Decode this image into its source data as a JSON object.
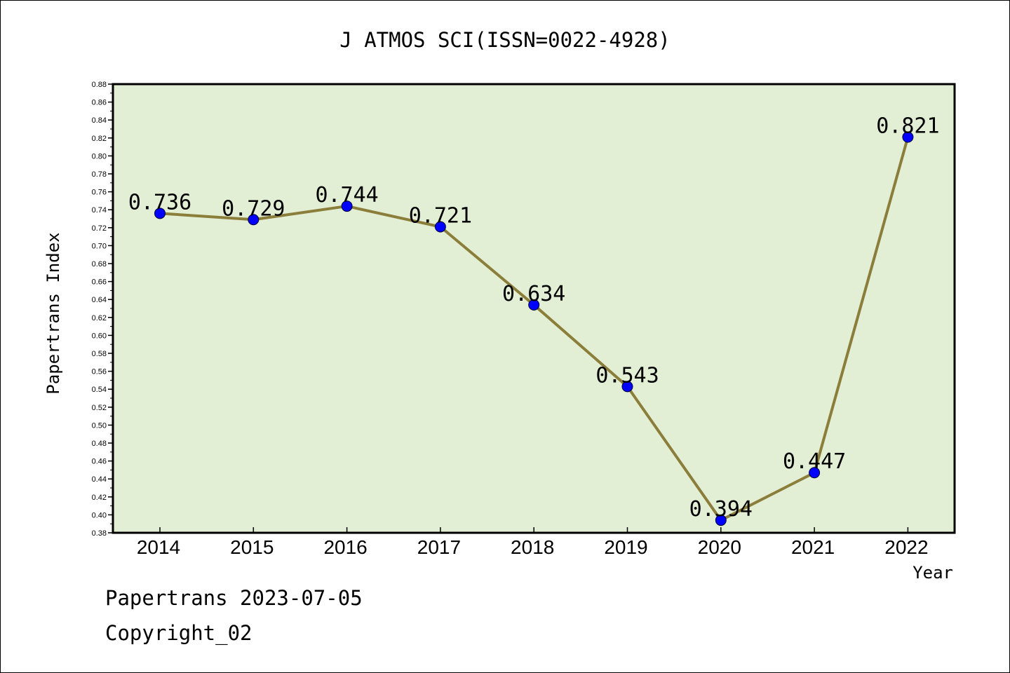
{
  "chart_data": {
    "type": "line",
    "title": "J ATMOS SCI(ISSN=0022-4928)",
    "xlabel": "Year",
    "ylabel": "Papertrans Index",
    "categories": [
      "2014",
      "2015",
      "2016",
      "2017",
      "2018",
      "2019",
      "2020",
      "2021",
      "2022"
    ],
    "series": [
      {
        "values": [
          0.736,
          0.729,
          0.744,
          0.721,
          0.634,
          0.543,
          0.394,
          0.447,
          0.821
        ]
      }
    ],
    "data_labels": [
      "0.736",
      "0.729",
      "0.744",
      "0.721",
      "0.634",
      "0.543",
      "0.394",
      "0.447",
      "0.821"
    ],
    "ylim": [
      0.38,
      0.88
    ],
    "yticks": [
      "0.38",
      "0.40",
      "0.42",
      "0.44",
      "0.46",
      "0.48",
      "0.50",
      "0.52",
      "0.54",
      "0.56",
      "0.58",
      "0.60",
      "0.62",
      "0.64",
      "0.66",
      "0.68",
      "0.70",
      "0.72",
      "0.74",
      "0.76",
      "0.78",
      "0.80",
      "0.82",
      "0.84",
      "0.86",
      "0.88"
    ],
    "grid": false,
    "colors": {
      "plot_bg": "#e2efd5",
      "line": "#8b7d3a",
      "marker": "#0000ff"
    }
  },
  "footer": {
    "line1": "Papertrans 2023-07-05",
    "line2": "Copyright_02"
  }
}
